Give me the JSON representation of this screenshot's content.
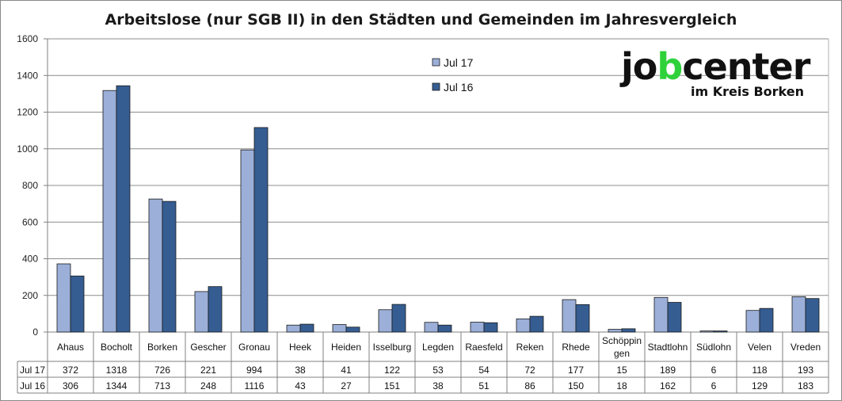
{
  "chart_data": {
    "type": "bar",
    "title": "Arbeitslose (nur SGB II) in den Städten und Gemeinden im Jahresvergleich",
    "categories": [
      "Ahaus",
      "Bocholt",
      "Borken",
      "Gescher",
      "Gronau",
      "Heek",
      "Heiden",
      "Isselburg",
      "Legden",
      "Raesfeld",
      "Reken",
      "Rhede",
      "Schöppingen",
      "Stadtlohn",
      "Südlohn",
      "Velen",
      "Vreden"
    ],
    "category_display": [
      [
        "Ahaus"
      ],
      [
        "Bocholt"
      ],
      [
        "Borken"
      ],
      [
        "Gescher"
      ],
      [
        "Gronau"
      ],
      [
        "Heek"
      ],
      [
        "Heiden"
      ],
      [
        "Isselburg"
      ],
      [
        "Legden"
      ],
      [
        "Raesfeld"
      ],
      [
        "Reken"
      ],
      [
        "Rhede"
      ],
      [
        "Schöppin",
        "gen"
      ],
      [
        "Stadtlohn"
      ],
      [
        "Südlohn"
      ],
      [
        "Velen"
      ],
      [
        "Vreden"
      ]
    ],
    "series": [
      {
        "name": "Jul 17",
        "color": "#9bafd8",
        "values": [
          372,
          1318,
          726,
          221,
          994,
          38,
          41,
          122,
          53,
          54,
          72,
          177,
          15,
          189,
          6,
          118,
          193
        ]
      },
      {
        "name": "Jul 16",
        "color": "#355d92",
        "values": [
          306,
          1344,
          713,
          248,
          1116,
          43,
          27,
          151,
          38,
          51,
          86,
          150,
          18,
          162,
          6,
          129,
          183
        ]
      }
    ],
    "ylim": [
      0,
      1600
    ],
    "yticks": [
      0,
      200,
      400,
      600,
      800,
      1000,
      1200,
      1400,
      1600
    ],
    "grid": true,
    "legend_position": "top-center-right",
    "data_table": true
  },
  "logo": {
    "word_part1": "jo",
    "word_highlight": "b",
    "word_part2": "center",
    "subtitle": "im Kreis Borken",
    "accent_color": "#2fd13a"
  }
}
